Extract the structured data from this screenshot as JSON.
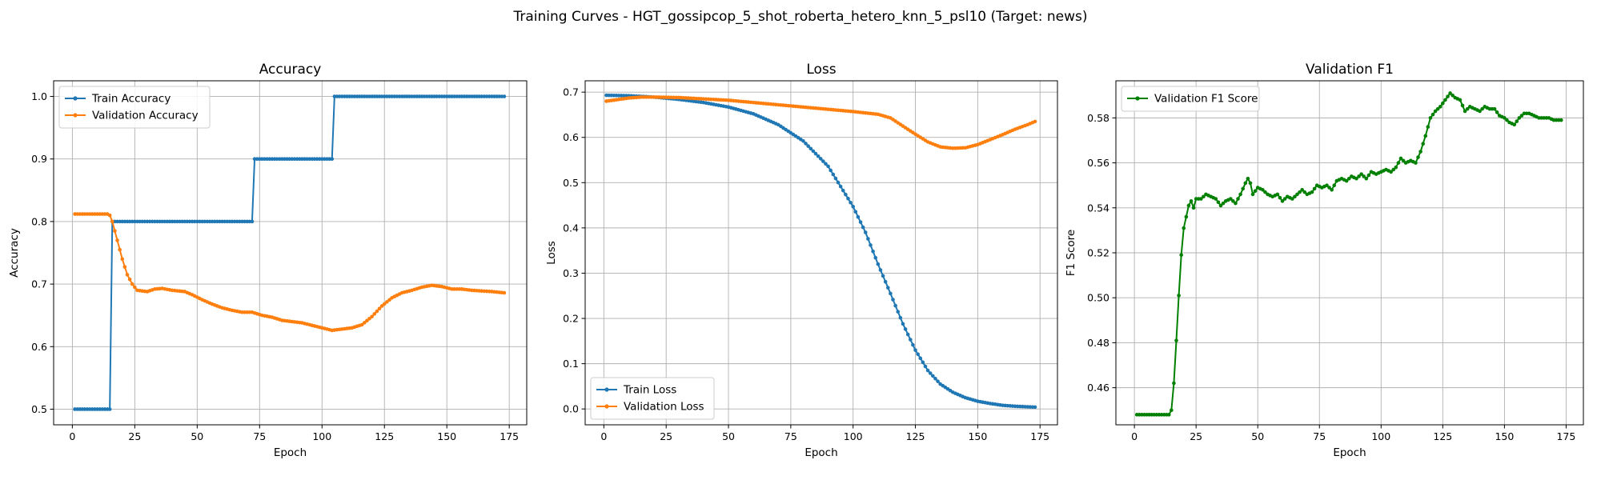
{
  "figure": {
    "suptitle": "Training Curves - HGT_gossipcop_5_shot_roberta_hetero_knn_5_psl10 (Target: news)"
  },
  "chart_data": [
    {
      "type": "line",
      "title": "Accuracy",
      "xlabel": "Epoch",
      "ylabel": "Accuracy",
      "xlim": [
        -7.5,
        182
      ],
      "ylim": [
        0.475,
        1.025
      ],
      "xticks": [
        0,
        25,
        50,
        75,
        100,
        125,
        150,
        175
      ],
      "yticks": [
        0.5,
        0.6,
        0.7,
        0.8,
        0.9,
        1.0
      ],
      "grid": true,
      "legend": "upper-left",
      "series": [
        {
          "name": "Train Accuracy",
          "color": "#1f77b4",
          "epochs": [
            1,
            173
          ],
          "keypoints": [
            [
              1,
              0.5
            ],
            [
              15,
              0.5
            ],
            [
              16,
              0.8
            ],
            [
              72,
              0.8
            ],
            [
              73,
              0.9
            ],
            [
              104,
              0.9
            ],
            [
              105,
              1.0
            ],
            [
              173,
              1.0
            ]
          ]
        },
        {
          "name": "Validation Accuracy",
          "color": "#ff7f0e",
          "epochs": [
            1,
            173
          ],
          "keypoints": [
            [
              1,
              0.812
            ],
            [
              14,
              0.812
            ],
            [
              15,
              0.81
            ],
            [
              16,
              0.8
            ],
            [
              18,
              0.77
            ],
            [
              20,
              0.74
            ],
            [
              22,
              0.715
            ],
            [
              24,
              0.7
            ],
            [
              26,
              0.69
            ],
            [
              30,
              0.688
            ],
            [
              33,
              0.692
            ],
            [
              36,
              0.693
            ],
            [
              40,
              0.69
            ],
            [
              45,
              0.688
            ],
            [
              48,
              0.683
            ],
            [
              52,
              0.675
            ],
            [
              56,
              0.668
            ],
            [
              60,
              0.662
            ],
            [
              64,
              0.658
            ],
            [
              68,
              0.655
            ],
            [
              72,
              0.655
            ],
            [
              76,
              0.65
            ],
            [
              80,
              0.647
            ],
            [
              84,
              0.642
            ],
            [
              88,
              0.64
            ],
            [
              92,
              0.638
            ],
            [
              96,
              0.634
            ],
            [
              100,
              0.63
            ],
            [
              104,
              0.626
            ],
            [
              108,
              0.628
            ],
            [
              112,
              0.63
            ],
            [
              116,
              0.635
            ],
            [
              120,
              0.648
            ],
            [
              124,
              0.665
            ],
            [
              128,
              0.678
            ],
            [
              132,
              0.686
            ],
            [
              136,
              0.69
            ],
            [
              140,
              0.695
            ],
            [
              144,
              0.698
            ],
            [
              148,
              0.696
            ],
            [
              152,
              0.692
            ],
            [
              156,
              0.692
            ],
            [
              160,
              0.69
            ],
            [
              164,
              0.689
            ],
            [
              168,
              0.688
            ],
            [
              173,
              0.686
            ]
          ]
        }
      ]
    },
    {
      "type": "line",
      "title": "Loss",
      "xlabel": "Epoch",
      "ylabel": "Loss",
      "xlim": [
        -7.5,
        182
      ],
      "ylim": [
        -0.035,
        0.725
      ],
      "xticks": [
        0,
        25,
        50,
        75,
        100,
        125,
        150,
        175
      ],
      "yticks": [
        0.0,
        0.1,
        0.2,
        0.3,
        0.4,
        0.5,
        0.6,
        0.7
      ],
      "grid": true,
      "legend": "lower-left",
      "series": [
        {
          "name": "Train Loss",
          "color": "#1f77b4",
          "epochs": [
            1,
            173
          ],
          "keypoints": [
            [
              1,
              0.693
            ],
            [
              10,
              0.692
            ],
            [
              20,
              0.689
            ],
            [
              30,
              0.684
            ],
            [
              40,
              0.677
            ],
            [
              50,
              0.667
            ],
            [
              60,
              0.652
            ],
            [
              70,
              0.628
            ],
            [
              80,
              0.592
            ],
            [
              90,
              0.536
            ],
            [
              100,
              0.447
            ],
            [
              105,
              0.39
            ],
            [
              110,
              0.32
            ],
            [
              115,
              0.255
            ],
            [
              120,
              0.188
            ],
            [
              125,
              0.13
            ],
            [
              130,
              0.085
            ],
            [
              135,
              0.055
            ],
            [
              140,
              0.037
            ],
            [
              145,
              0.025
            ],
            [
              150,
              0.017
            ],
            [
              155,
              0.012
            ],
            [
              160,
              0.008
            ],
            [
              165,
              0.006
            ],
            [
              173,
              0.004
            ]
          ]
        },
        {
          "name": "Validation Loss",
          "color": "#ff7f0e",
          "epochs": [
            1,
            173
          ],
          "keypoints": [
            [
              1,
              0.68
            ],
            [
              5,
              0.683
            ],
            [
              10,
              0.687
            ],
            [
              15,
              0.689
            ],
            [
              20,
              0.689
            ],
            [
              30,
              0.688
            ],
            [
              40,
              0.685
            ],
            [
              50,
              0.682
            ],
            [
              60,
              0.677
            ],
            [
              70,
              0.672
            ],
            [
              80,
              0.667
            ],
            [
              90,
              0.662
            ],
            [
              100,
              0.657
            ],
            [
              110,
              0.651
            ],
            [
              115,
              0.643
            ],
            [
              120,
              0.625
            ],
            [
              125,
              0.607
            ],
            [
              130,
              0.59
            ],
            [
              135,
              0.579
            ],
            [
              140,
              0.576
            ],
            [
              145,
              0.577
            ],
            [
              150,
              0.584
            ],
            [
              155,
              0.595
            ],
            [
              160,
              0.606
            ],
            [
              165,
              0.618
            ],
            [
              170,
              0.628
            ],
            [
              173,
              0.635
            ]
          ]
        }
      ]
    },
    {
      "type": "line",
      "title": "Validation F1",
      "xlabel": "Epoch",
      "ylabel": "F1 Score",
      "xlim": [
        -7.5,
        182
      ],
      "ylim": [
        0.4435,
        0.5965
      ],
      "xticks": [
        0,
        25,
        50,
        75,
        100,
        125,
        150,
        175
      ],
      "yticks": [
        0.46,
        0.48,
        0.5,
        0.52,
        0.54,
        0.56,
        0.58
      ],
      "grid": true,
      "legend": "upper-left",
      "series": [
        {
          "name": "Validation F1 Score",
          "color": "#008000",
          "epochs": [
            1,
            173
          ],
          "keypoints": [
            [
              1,
              0.448
            ],
            [
              14,
              0.448
            ],
            [
              15,
              0.45
            ],
            [
              16,
              0.462
            ],
            [
              17,
              0.481
            ],
            [
              18,
              0.501
            ],
            [
              19,
              0.519
            ],
            [
              20,
              0.531
            ],
            [
              21,
              0.536
            ],
            [
              22,
              0.541
            ],
            [
              23,
              0.543
            ],
            [
              24,
              0.54
            ],
            [
              25,
              0.544
            ],
            [
              27,
              0.544
            ],
            [
              29,
              0.546
            ],
            [
              31,
              0.545
            ],
            [
              33,
              0.544
            ],
            [
              35,
              0.541
            ],
            [
              37,
              0.543
            ],
            [
              39,
              0.544
            ],
            [
              41,
              0.542
            ],
            [
              43,
              0.546
            ],
            [
              45,
              0.551
            ],
            [
              46,
              0.553
            ],
            [
              47,
              0.551
            ],
            [
              48,
              0.546
            ],
            [
              50,
              0.549
            ],
            [
              52,
              0.548
            ],
            [
              54,
              0.546
            ],
            [
              56,
              0.545
            ],
            [
              58,
              0.546
            ],
            [
              60,
              0.543
            ],
            [
              62,
              0.545
            ],
            [
              64,
              0.544
            ],
            [
              66,
              0.546
            ],
            [
              68,
              0.548
            ],
            [
              70,
              0.546
            ],
            [
              72,
              0.547
            ],
            [
              74,
              0.55
            ],
            [
              76,
              0.549
            ],
            [
              78,
              0.55
            ],
            [
              80,
              0.548
            ],
            [
              82,
              0.552
            ],
            [
              84,
              0.553
            ],
            [
              86,
              0.552
            ],
            [
              88,
              0.554
            ],
            [
              90,
              0.553
            ],
            [
              92,
              0.555
            ],
            [
              94,
              0.553
            ],
            [
              96,
              0.556
            ],
            [
              98,
              0.555
            ],
            [
              100,
              0.556
            ],
            [
              102,
              0.557
            ],
            [
              104,
              0.556
            ],
            [
              106,
              0.558
            ],
            [
              108,
              0.562
            ],
            [
              110,
              0.56
            ],
            [
              112,
              0.561
            ],
            [
              114,
              0.56
            ],
            [
              116,
              0.565
            ],
            [
              118,
              0.572
            ],
            [
              120,
              0.58
            ],
            [
              122,
              0.583
            ],
            [
              124,
              0.585
            ],
            [
              126,
              0.588
            ],
            [
              128,
              0.591
            ],
            [
              130,
              0.589
            ],
            [
              132,
              0.588
            ],
            [
              134,
              0.583
            ],
            [
              136,
              0.585
            ],
            [
              138,
              0.584
            ],
            [
              140,
              0.583
            ],
            [
              142,
              0.585
            ],
            [
              144,
              0.584
            ],
            [
              146,
              0.584
            ],
            [
              148,
              0.581
            ],
            [
              150,
              0.58
            ],
            [
              152,
              0.578
            ],
            [
              154,
              0.577
            ],
            [
              156,
              0.58
            ],
            [
              158,
              0.582
            ],
            [
              160,
              0.582
            ],
            [
              162,
              0.581
            ],
            [
              164,
              0.58
            ],
            [
              166,
              0.58
            ],
            [
              168,
              0.58
            ],
            [
              170,
              0.579
            ],
            [
              173,
              0.579
            ]
          ]
        }
      ]
    }
  ]
}
